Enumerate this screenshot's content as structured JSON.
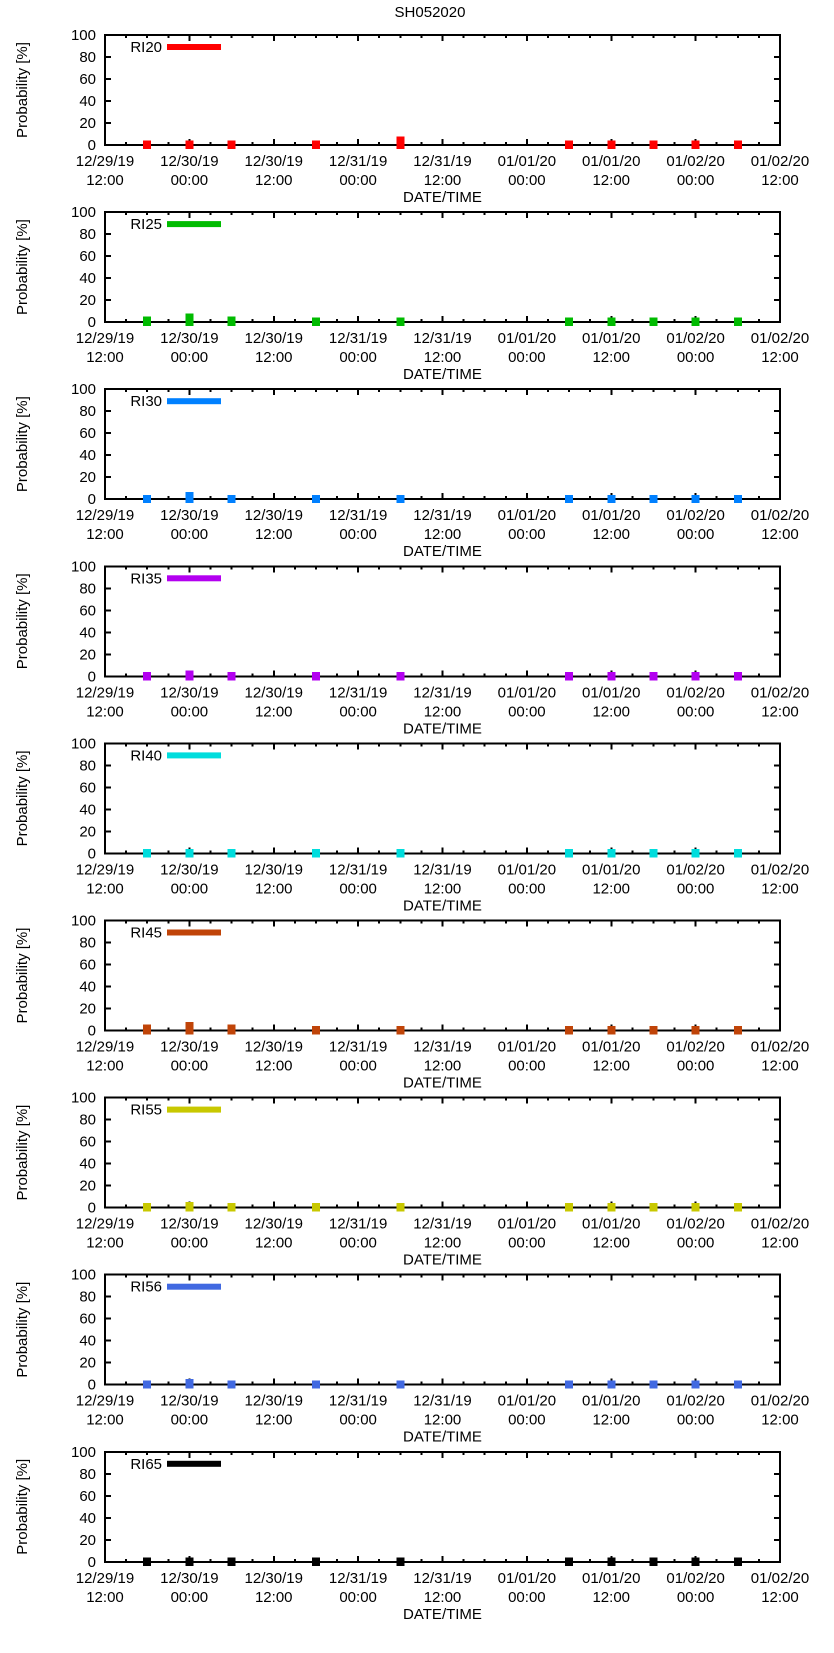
{
  "chart_data": {
    "type": "scatter",
    "suptitle": "SH052020",
    "xlabel": "DATE/TIME",
    "ylabel": "Probability [%]",
    "ylim": [
      0,
      100
    ],
    "yticks": [
      0,
      20,
      40,
      60,
      80,
      100
    ],
    "x_axis_span_hours": 96,
    "x_minor_tick_hours": 3,
    "x_major_tick_hours": 12,
    "xtick_hours": [
      0,
      12,
      24,
      36,
      48,
      60,
      72,
      84,
      96
    ],
    "xtick_labels": [
      [
        "12/29/19",
        "12:00"
      ],
      [
        "12/30/19",
        "00:00"
      ],
      [
        "12/30/19",
        "12:00"
      ],
      [
        "12/31/19",
        "00:00"
      ],
      [
        "12/31/19",
        "12:00"
      ],
      [
        "01/01/20",
        "00:00"
      ],
      [
        "01/01/20",
        "12:00"
      ],
      [
        "01/02/20",
        "00:00"
      ],
      [
        "01/02/20",
        "12:00"
      ]
    ],
    "point_hours": [
      6,
      12,
      18,
      30,
      42,
      66,
      72,
      78,
      84,
      90
    ],
    "point_datetimes": [
      "12/29/19 18:00",
      "12/30/19 00:00",
      "12/30/19 06:00",
      "12/30/19 18:00",
      "12/31/19 06:00",
      "01/01/20 06:00",
      "01/01/20 12:00",
      "01/01/20 18:00",
      "01/02/20 00:00",
      "01/02/20 06:00"
    ],
    "subplots": [
      {
        "name": "RI20",
        "color": "#ff0000",
        "values": [
          1,
          1,
          1,
          1,
          4,
          1,
          1,
          1,
          1,
          1
        ]
      },
      {
        "name": "RI25",
        "color": "#00bb00",
        "values": [
          2,
          4,
          2,
          1,
          1,
          1,
          1,
          1,
          1,
          1
        ]
      },
      {
        "name": "RI30",
        "color": "#0080ff",
        "values": [
          1,
          3,
          1,
          1,
          1,
          1,
          1,
          1,
          1,
          1
        ]
      },
      {
        "name": "RI35",
        "color": "#b300f0",
        "values": [
          1,
          2,
          1,
          1,
          1,
          1,
          1,
          1,
          1,
          1
        ]
      },
      {
        "name": "RI40",
        "color": "#00dddd",
        "values": [
          1,
          1,
          1,
          1,
          1,
          1,
          1,
          1,
          1,
          1
        ]
      },
      {
        "name": "RI45",
        "color": "#c04408",
        "values": [
          2,
          4,
          2,
          1,
          1,
          1,
          1,
          1,
          1,
          1
        ]
      },
      {
        "name": "RI55",
        "color": "#c8c800",
        "values": [
          1,
          2,
          1,
          1,
          1,
          1,
          1,
          1,
          1,
          1
        ]
      },
      {
        "name": "RI56",
        "color": "#4169e1",
        "values": [
          1,
          2,
          1,
          1,
          1,
          1,
          1,
          1,
          1,
          1
        ]
      },
      {
        "name": "RI65",
        "color": "#000000",
        "values": [
          1,
          1,
          1,
          1,
          1,
          1,
          1,
          1,
          1,
          1
        ]
      }
    ],
    "legend_position": "top-left",
    "grid": "off",
    "axis_color": "#000000"
  }
}
